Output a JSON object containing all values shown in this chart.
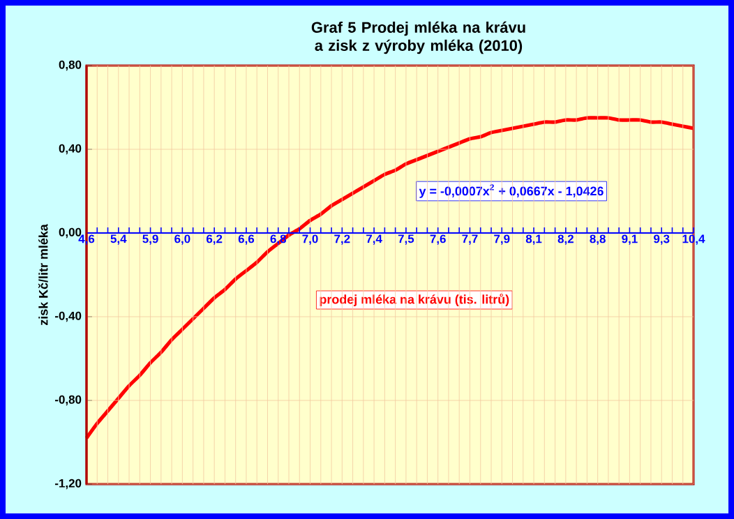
{
  "chart_data": {
    "type": "line",
    "title": "Graf 5  Prodej mléka na krávu a zisk z výroby mléka (2010)",
    "xlabel": "prodej mléka na krávu (tis. litrů)",
    "ylabel": "zisk Kč/litr mléka",
    "annotations": [
      "y = -0,0007x$^{2}$ + 0,0667x - 1,0426"
    ],
    "categories": [
      "4,6",
      null,
      null,
      "5,4",
      null,
      null,
      "5,9",
      null,
      null,
      "6,0",
      null,
      null,
      "6,2",
      null,
      null,
      "6,6",
      null,
      null,
      "6,8",
      null,
      null,
      "7,0",
      null,
      null,
      "7,2",
      null,
      null,
      "7,4",
      null,
      null,
      "7,5",
      null,
      null,
      "7,6",
      null,
      null,
      "7,7",
      null,
      null,
      "7,9",
      null,
      null,
      "8,1",
      null,
      null,
      "8,2",
      null,
      null,
      "8,8",
      null,
      null,
      "9,1",
      null,
      null,
      "9,3",
      null,
      null,
      "10,4"
    ],
    "series": [
      {
        "color": "#ff0000",
        "values": [
          -0.98,
          -0.91,
          -0.85,
          -0.79,
          -0.73,
          -0.68,
          -0.62,
          -0.57,
          -0.51,
          -0.46,
          -0.41,
          -0.36,
          -0.31,
          -0.27,
          -0.22,
          -0.18,
          -0.14,
          -0.09,
          -0.05,
          -0.01,
          0.02,
          0.06,
          0.09,
          0.13,
          0.16,
          0.19,
          0.22,
          0.25,
          0.28,
          0.3,
          0.33,
          0.35,
          0.37,
          0.39,
          0.41,
          0.43,
          0.45,
          0.46,
          0.48,
          0.49,
          0.5,
          0.51,
          0.52,
          0.53,
          0.53,
          0.54,
          0.54,
          0.55,
          0.55,
          0.55,
          0.54,
          0.54,
          0.54,
          0.53,
          0.53,
          0.52,
          0.51,
          0.5
        ]
      }
    ],
    "ylim": [
      -1.2,
      0.8
    ],
    "yticks": [
      {
        "value": -1.2,
        "label": "-1,20"
      },
      {
        "value": -0.8,
        "label": "-0,80"
      },
      {
        "value": -0.4,
        "label": "-0,40"
      },
      {
        "value": 0,
        "label": "0,00"
      },
      {
        "value": 0.4,
        "label": "0,40"
      },
      {
        "value": 0.8,
        "label": "0,80"
      }
    ],
    "grid": true,
    "marker": "none",
    "line_style": "solid"
  }
}
